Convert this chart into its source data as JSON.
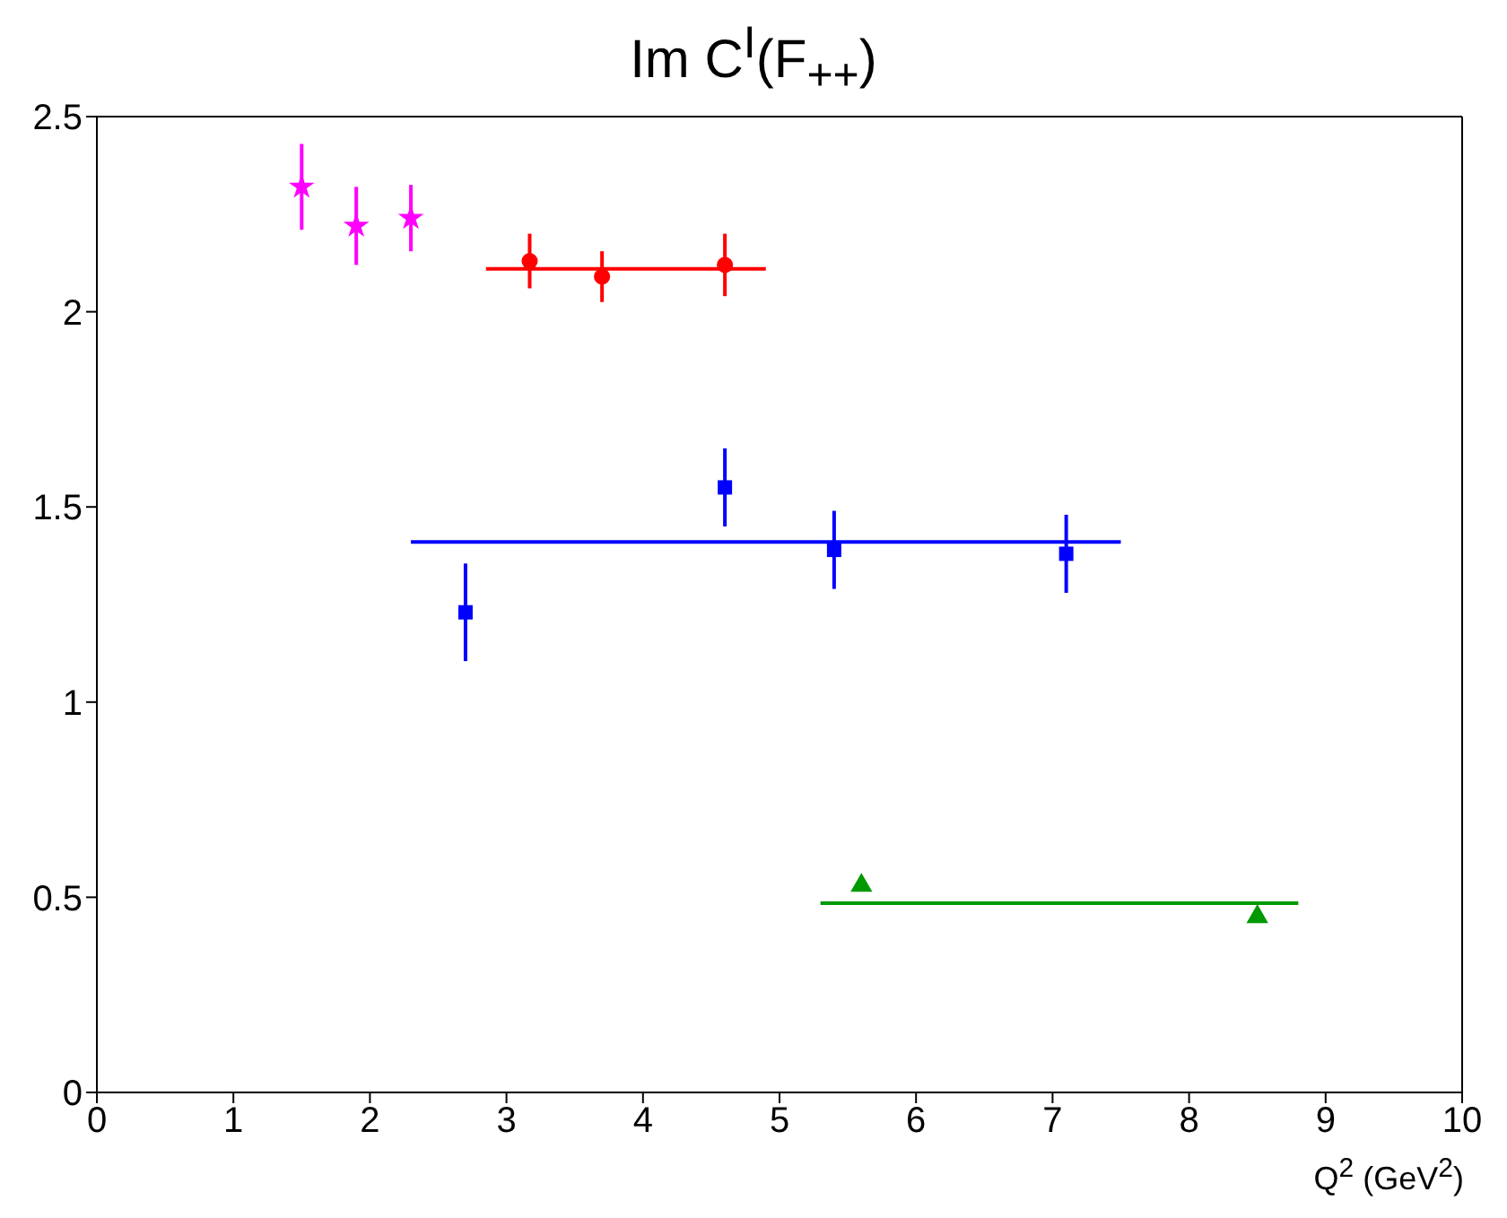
{
  "chart_data": {
    "type": "scatter",
    "title": "Im C$^{I}$(F$_{++}$)",
    "xlabel": "Q$^{2}$ (GeV$^{2}$)",
    "xlim": [
      0,
      10
    ],
    "xticks": [
      0,
      1,
      2,
      3,
      4,
      5,
      6,
      7,
      8,
      9,
      10
    ],
    "ylim": [
      0,
      2.5
    ],
    "yticks": [
      0,
      0.5,
      1,
      1.5,
      2,
      2.5
    ],
    "grid": false,
    "series": [
      {
        "type": "scatter",
        "color": "#ff00ff",
        "marker": "star",
        "x": [
          1.5,
          1.9,
          2.3
        ],
        "values": [
          2.32,
          2.22,
          2.24
        ],
        "errors": [
          0.11,
          0.1,
          0.085
        ]
      },
      {
        "type": "scatter",
        "color": "#ff0000",
        "marker": "circle",
        "x": [
          3.17,
          3.7,
          4.6
        ],
        "values": [
          2.13,
          2.09,
          2.12
        ],
        "errors": [
          0.07,
          0.065,
          0.08
        ]
      },
      {
        "type": "line",
        "color": "#ff0000",
        "x": [
          2.85,
          4.9
        ],
        "values": [
          2.11,
          2.11
        ]
      },
      {
        "type": "scatter",
        "color": "#0000ff",
        "marker": "square",
        "x": [
          2.7,
          4.6,
          5.4,
          7.1
        ],
        "values": [
          1.23,
          1.55,
          1.39,
          1.38
        ],
        "errors": [
          0.125,
          0.1,
          0.1,
          0.1
        ]
      },
      {
        "type": "line",
        "color": "#0000ff",
        "x": [
          2.3,
          7.5
        ],
        "values": [
          1.41,
          1.41
        ]
      },
      {
        "type": "scatter",
        "color": "#009900",
        "marker": "triangle",
        "x": [
          5.6,
          8.5
        ],
        "values": [
          0.53,
          0.45
        ]
      },
      {
        "type": "line",
        "color": "#009900",
        "x": [
          5.3,
          8.8
        ],
        "values": [
          0.485,
          0.485
        ]
      }
    ]
  }
}
